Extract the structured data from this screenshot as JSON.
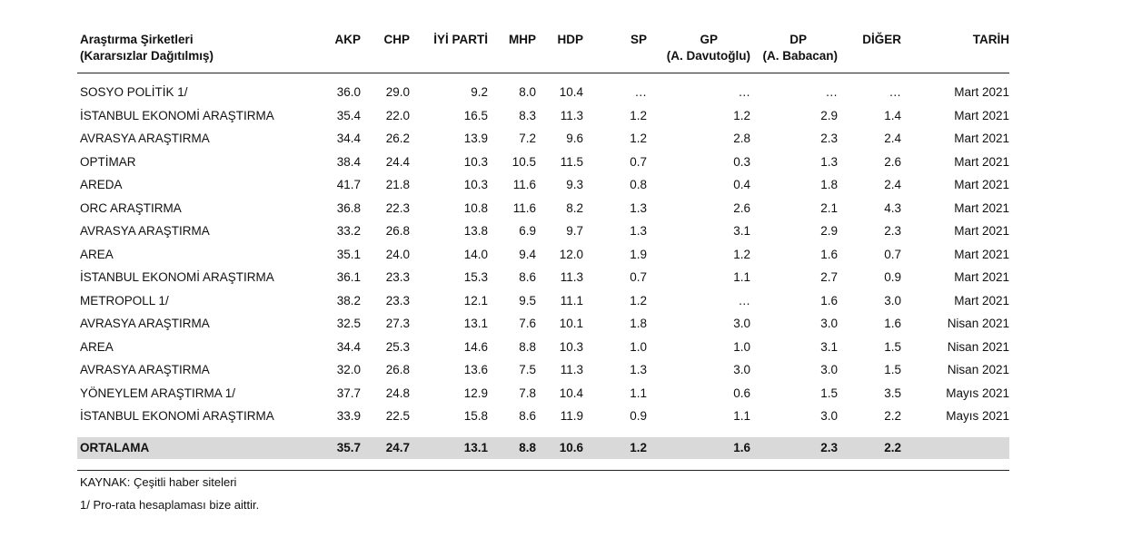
{
  "header": {
    "company": "Araştırma Şirketleri",
    "company_sub": "(Kararsızlar Dağıtılmış)",
    "akp": "AKP",
    "chp": "CHP",
    "iyi": "İYİ PARTİ",
    "mhp": "MHP",
    "hdp": "HDP",
    "sp": "SP",
    "gp": "GP",
    "gp_sub": "(A. Davutoğlu)",
    "dp": "DP",
    "dp_sub": "(A. Babacan)",
    "diger": "DİĞER",
    "tarih": "TARİH"
  },
  "rows": [
    {
      "company": "SOSYO POLİTİK 1/",
      "akp": "36.0",
      "chp": "29.0",
      "iyi": "9.2",
      "mhp": "8.0",
      "hdp": "10.4",
      "sp": "…",
      "gp": "…",
      "dp": "…",
      "diger": "…",
      "tarih": "Mart 2021"
    },
    {
      "company": "İSTANBUL EKONOMİ ARAŞTIRMA",
      "akp": "35.4",
      "chp": "22.0",
      "iyi": "16.5",
      "mhp": "8.3",
      "hdp": "11.3",
      "sp": "1.2",
      "gp": "1.2",
      "dp": "2.9",
      "diger": "1.4",
      "tarih": "Mart 2021"
    },
    {
      "company": "AVRASYA ARAŞTIRMA",
      "akp": "34.4",
      "chp": "26.2",
      "iyi": "13.9",
      "mhp": "7.2",
      "hdp": "9.6",
      "sp": "1.2",
      "gp": "2.8",
      "dp": "2.3",
      "diger": "2.4",
      "tarih": "Mart 2021"
    },
    {
      "company": "OPTİMAR",
      "akp": "38.4",
      "chp": "24.4",
      "iyi": "10.3",
      "mhp": "10.5",
      "hdp": "11.5",
      "sp": "0.7",
      "gp": "0.3",
      "dp": "1.3",
      "diger": "2.6",
      "tarih": "Mart 2021"
    },
    {
      "company": "AREDA",
      "akp": "41.7",
      "chp": "21.8",
      "iyi": "10.3",
      "mhp": "11.6",
      "hdp": "9.3",
      "sp": "0.8",
      "gp": "0.4",
      "dp": "1.8",
      "diger": "2.4",
      "tarih": "Mart 2021"
    },
    {
      "company": "ORC ARAŞTIRMA",
      "akp": "36.8",
      "chp": "22.3",
      "iyi": "10.8",
      "mhp": "11.6",
      "hdp": "8.2",
      "sp": "1.3",
      "gp": "2.6",
      "dp": "2.1",
      "diger": "4.3",
      "tarih": "Mart 2021"
    },
    {
      "company": "AVRASYA ARAŞTIRMA",
      "akp": "33.2",
      "chp": "26.8",
      "iyi": "13.8",
      "mhp": "6.9",
      "hdp": "9.7",
      "sp": "1.3",
      "gp": "3.1",
      "dp": "2.9",
      "diger": "2.3",
      "tarih": "Mart 2021"
    },
    {
      "company": "AREA",
      "akp": "35.1",
      "chp": "24.0",
      "iyi": "14.0",
      "mhp": "9.4",
      "hdp": "12.0",
      "sp": "1.9",
      "gp": "1.2",
      "dp": "1.6",
      "diger": "0.7",
      "tarih": "Mart 2021"
    },
    {
      "company": "İSTANBUL EKONOMİ ARAŞTIRMA",
      "akp": "36.1",
      "chp": "23.3",
      "iyi": "15.3",
      "mhp": "8.6",
      "hdp": "11.3",
      "sp": "0.7",
      "gp": "1.1",
      "dp": "2.7",
      "diger": "0.9",
      "tarih": "Mart 2021"
    },
    {
      "company": "METROPOLL 1/",
      "akp": "38.2",
      "chp": "23.3",
      "iyi": "12.1",
      "mhp": "9.5",
      "hdp": "11.1",
      "sp": "1.2",
      "gp": "…",
      "dp": "1.6",
      "diger": "3.0",
      "tarih": "Mart 2021"
    },
    {
      "company": "AVRASYA ARAŞTIRMA",
      "akp": "32.5",
      "chp": "27.3",
      "iyi": "13.1",
      "mhp": "7.6",
      "hdp": "10.1",
      "sp": "1.8",
      "gp": "3.0",
      "dp": "3.0",
      "diger": "1.6",
      "tarih": "Nisan 2021"
    },
    {
      "company": "AREA",
      "akp": "34.4",
      "chp": "25.3",
      "iyi": "14.6",
      "mhp": "8.8",
      "hdp": "10.3",
      "sp": "1.0",
      "gp": "1.0",
      "dp": "3.1",
      "diger": "1.5",
      "tarih": "Nisan 2021"
    },
    {
      "company": "AVRASYA ARAŞTIRMA",
      "akp": "32.0",
      "chp": "26.8",
      "iyi": "13.6",
      "mhp": "7.5",
      "hdp": "11.3",
      "sp": "1.3",
      "gp": "3.0",
      "dp": "3.0",
      "diger": "1.5",
      "tarih": "Nisan 2021"
    },
    {
      "company": "YÖNEYLEM ARAŞTIRMA 1/",
      "akp": "37.7",
      "chp": "24.8",
      "iyi": "12.9",
      "mhp": "7.8",
      "hdp": "10.4",
      "sp": "1.1",
      "gp": "0.6",
      "dp": "1.5",
      "diger": "3.5",
      "tarih": "Mayıs 2021"
    },
    {
      "company": "İSTANBUL EKONOMİ ARAŞTIRMA",
      "akp": "33.9",
      "chp": "22.5",
      "iyi": "15.8",
      "mhp": "8.6",
      "hdp": "11.9",
      "sp": "0.9",
      "gp": "1.1",
      "dp": "3.0",
      "diger": "2.2",
      "tarih": "Mayıs 2021"
    }
  ],
  "average": {
    "company": "ORTALAMA",
    "akp": "35.7",
    "chp": "24.7",
    "iyi": "13.1",
    "mhp": "8.8",
    "hdp": "10.6",
    "sp": "1.2",
    "gp": "1.6",
    "dp": "2.3",
    "diger": "2.2"
  },
  "notes": {
    "source": "KAYNAK: Çeşitli haber siteleri",
    "footnote": "1/ Pro-rata hesaplaması bize aittir."
  },
  "colors": {
    "average_row_bg": "#d9d9d9",
    "rule": "#222222"
  }
}
